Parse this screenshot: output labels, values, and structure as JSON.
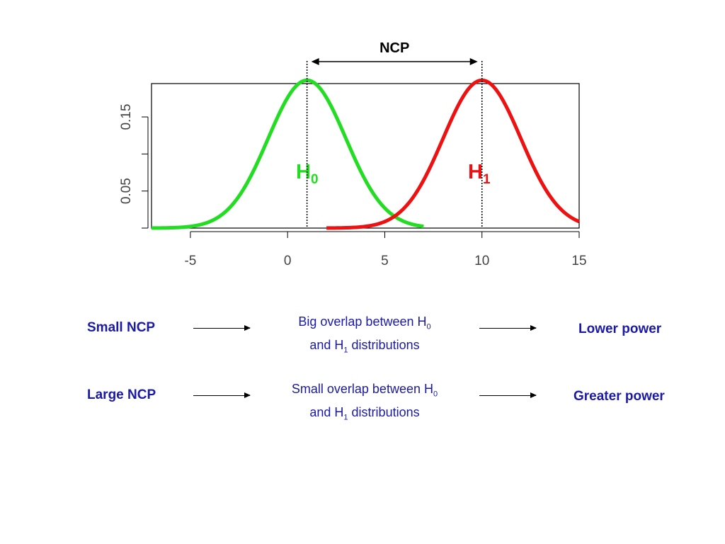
{
  "chart_data": {
    "type": "line",
    "title": "NCP",
    "xlabel": "",
    "ylabel": "",
    "xlim": [
      -7,
      15
    ],
    "ylim": [
      0,
      0.195
    ],
    "x_ticks": [
      "-5",
      "0",
      "5",
      "10",
      "15"
    ],
    "x_tick_values": [
      -5,
      0,
      5,
      10,
      15
    ],
    "y_ticks": [
      "0.05",
      "0.15"
    ],
    "y_tick_values": [
      0.05,
      0.15
    ],
    "y_minor_ticks": [
      0.0,
      0.1
    ],
    "grid": false,
    "series": [
      {
        "name": "H0",
        "name_main": "H",
        "name_sub": "0",
        "color": "#22dd22",
        "distribution": "normal",
        "mean": 1,
        "sd": 2,
        "x_range": [
          -7,
          7
        ],
        "peak_density": 0.1995
      },
      {
        "name": "H1",
        "name_main": "H",
        "name_sub": "1",
        "color": "#ee1111",
        "distribution": "normal",
        "mean": 10,
        "sd": 2,
        "x_range": [
          2,
          15
        ],
        "peak_density": 0.1995
      }
    ],
    "reference_lines": [
      {
        "x": 1,
        "style": "dotted"
      },
      {
        "x": 10,
        "style": "dotted"
      }
    ],
    "annotation": {
      "text": "NCP",
      "from_x": 1,
      "to_x": 10,
      "style": "double-arrow"
    }
  },
  "rows": [
    {
      "left": "Small NCP",
      "middle_line1_prefix": "Big overlap between H",
      "middle_line1_sub": "0",
      "middle_line2_prefix": "and H",
      "middle_line2_sub": "1",
      "middle_line2_suffix": " distributions",
      "right": "Lower power"
    },
    {
      "left": "Large NCP",
      "middle_line1_prefix": "Small overlap between H",
      "middle_line1_sub": "0",
      "middle_line2_prefix": "and H",
      "middle_line2_sub": "1",
      "middle_line2_suffix": " distributions",
      "right": "Greater power"
    }
  ],
  "colors": {
    "text_blue": "#1a1aa6",
    "h0": "#22dd22",
    "h1": "#ee1111"
  }
}
